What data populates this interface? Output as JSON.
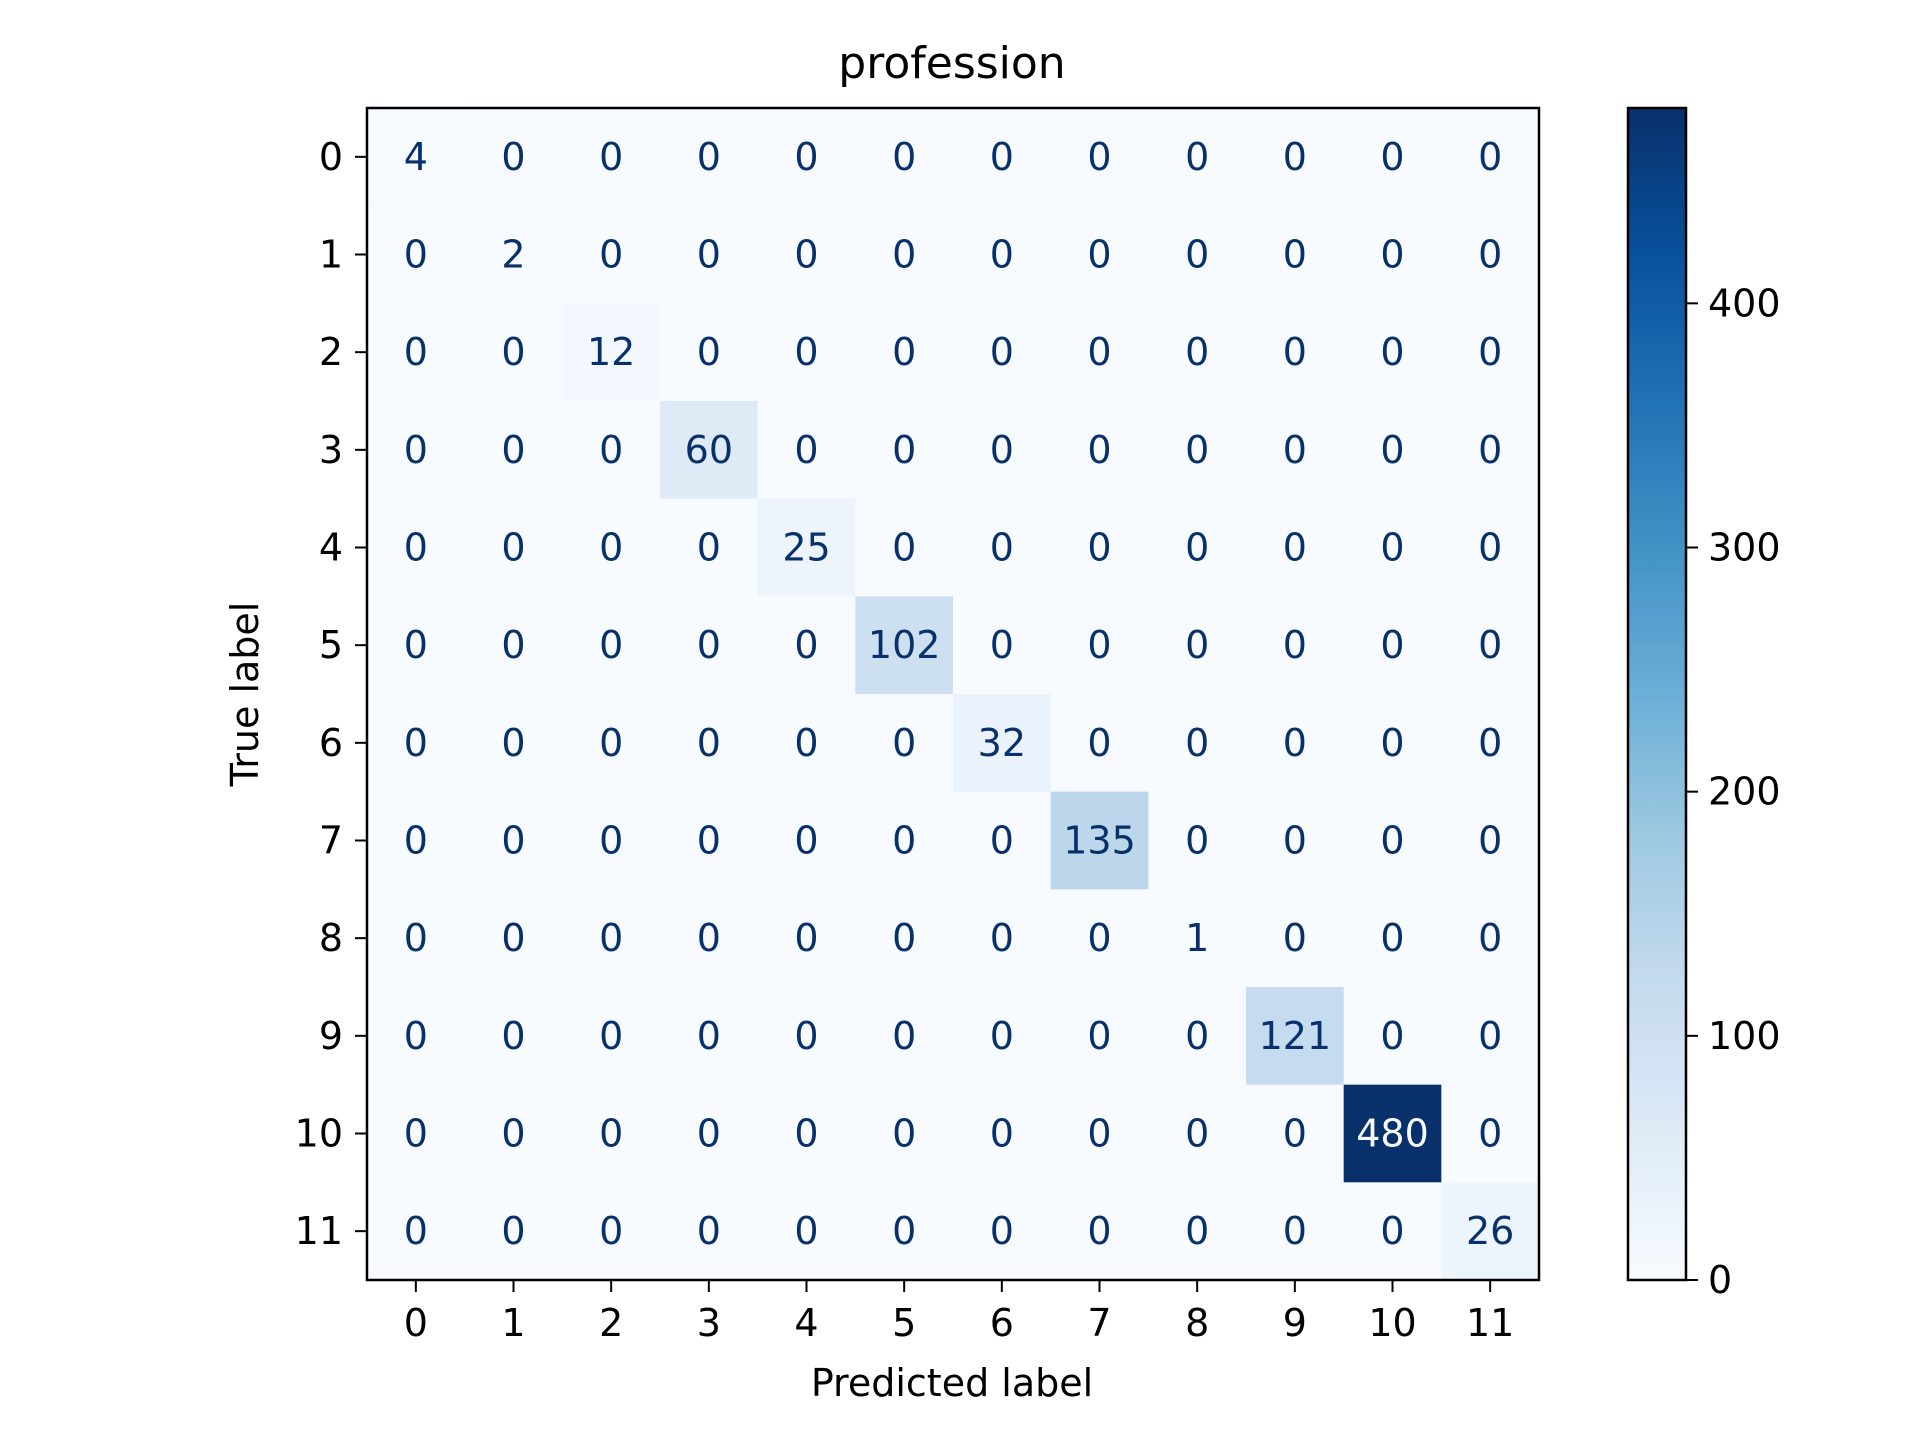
{
  "chart_data": {
    "type": "heatmap",
    "title": "profession",
    "xlabel": "Predicted label",
    "ylabel": "True label",
    "x_categories": [
      "0",
      "1",
      "2",
      "3",
      "4",
      "5",
      "6",
      "7",
      "8",
      "9",
      "10",
      "11"
    ],
    "y_categories": [
      "0",
      "1",
      "2",
      "3",
      "4",
      "5",
      "6",
      "7",
      "8",
      "9",
      "10",
      "11"
    ],
    "matrix": [
      [
        4,
        0,
        0,
        0,
        0,
        0,
        0,
        0,
        0,
        0,
        0,
        0
      ],
      [
        0,
        2,
        0,
        0,
        0,
        0,
        0,
        0,
        0,
        0,
        0,
        0
      ],
      [
        0,
        0,
        12,
        0,
        0,
        0,
        0,
        0,
        0,
        0,
        0,
        0
      ],
      [
        0,
        0,
        0,
        60,
        0,
        0,
        0,
        0,
        0,
        0,
        0,
        0
      ],
      [
        0,
        0,
        0,
        0,
        25,
        0,
        0,
        0,
        0,
        0,
        0,
        0
      ],
      [
        0,
        0,
        0,
        0,
        0,
        102,
        0,
        0,
        0,
        0,
        0,
        0
      ],
      [
        0,
        0,
        0,
        0,
        0,
        0,
        32,
        0,
        0,
        0,
        0,
        0
      ],
      [
        0,
        0,
        0,
        0,
        0,
        0,
        0,
        135,
        0,
        0,
        0,
        0
      ],
      [
        0,
        0,
        0,
        0,
        0,
        0,
        0,
        0,
        1,
        0,
        0,
        0
      ],
      [
        0,
        0,
        0,
        0,
        0,
        0,
        0,
        0,
        0,
        121,
        0,
        0
      ],
      [
        0,
        0,
        0,
        0,
        0,
        0,
        0,
        0,
        0,
        0,
        480,
        0
      ],
      [
        0,
        0,
        0,
        0,
        0,
        0,
        0,
        0,
        0,
        0,
        0,
        26
      ]
    ],
    "colorbar": {
      "colormap": "Blues",
      "min": 0,
      "max": 480,
      "ticks": [
        0,
        100,
        200,
        300,
        400
      ]
    },
    "grid": false,
    "colors": {
      "low": "#f7fbff",
      "high": "#08306b",
      "text_dark": "#08306b",
      "text_light": "#f7fbff"
    }
  }
}
